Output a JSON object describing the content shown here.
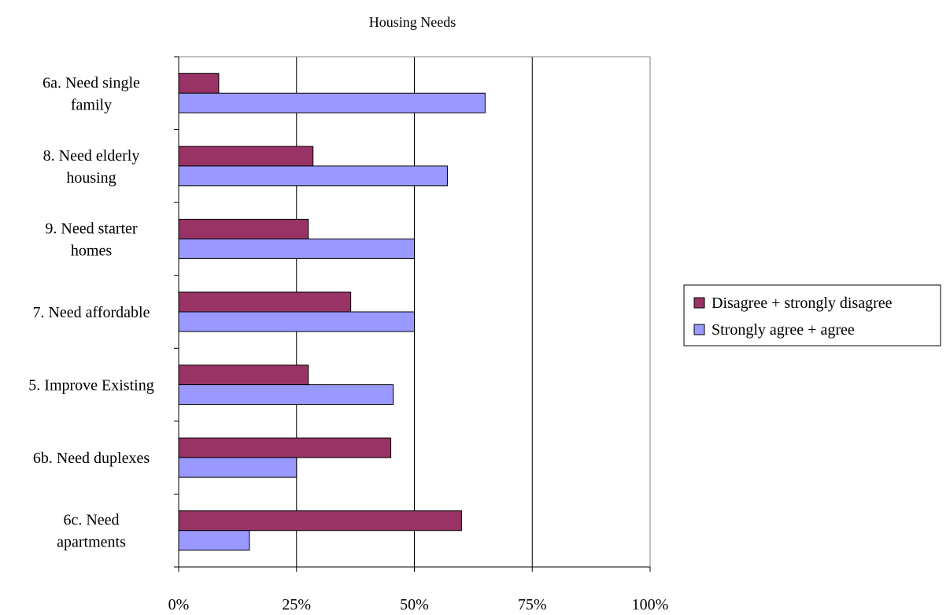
{
  "chart_data": {
    "type": "bar",
    "orientation": "horizontal",
    "title": "Housing Needs",
    "xlabel": "",
    "ylabel": "",
    "xlim": [
      0,
      100
    ],
    "x_ticks": [
      "0%",
      "25%",
      "50%",
      "75%",
      "100%"
    ],
    "grid": "vertical lines at 25% intervals",
    "legend_position": "right",
    "categories": [
      [
        "6a. Need single",
        "family"
      ],
      [
        "8. Need elderly",
        "housing"
      ],
      [
        "9. Need starter",
        "homes"
      ],
      [
        "7. Need affordable"
      ],
      [
        "5. Improve Existing"
      ],
      [
        "6b. Need duplexes"
      ],
      [
        "6c. Need",
        "apartments"
      ]
    ],
    "series": [
      {
        "name": "Disagree + strongly disagree",
        "color": "#993366",
        "values": [
          8.5,
          28.5,
          27.5,
          36.5,
          27.5,
          45,
          60
        ]
      },
      {
        "name": "Strongly agree + agree",
        "color": "#9999ff",
        "values": [
          65,
          57,
          50,
          50,
          45.5,
          25,
          15
        ]
      }
    ]
  }
}
